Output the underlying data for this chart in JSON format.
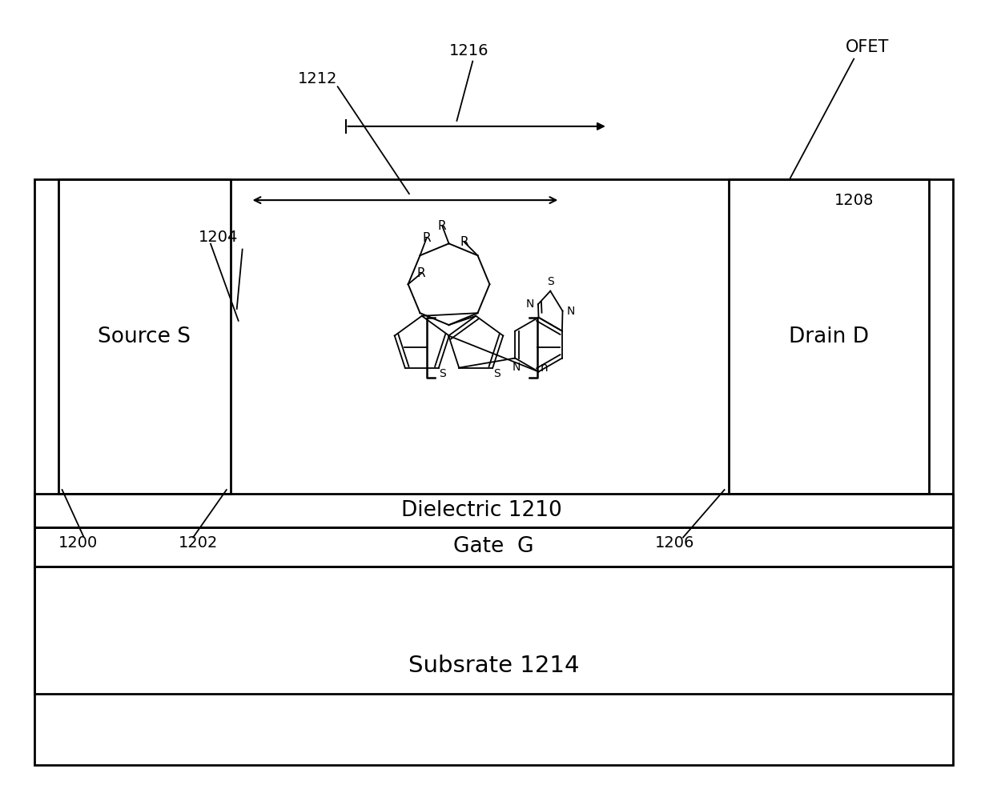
{
  "bg_color": "#ffffff",
  "line_color": "#000000",
  "fig_width": 12.4,
  "fig_height": 10.01,
  "labels": {
    "source": "Source S",
    "drain": "Drain D",
    "gate": "Gate  G",
    "dielectric_1210": "Dielectric 1210",
    "substrate": "Subsrate 1214",
    "n1200": "1200",
    "n1202": "1202",
    "n1204": "1204",
    "n1206": "1206",
    "n1208": "1208",
    "n1212": "1212",
    "n1216": "1216",
    "ofet": "OFET"
  }
}
